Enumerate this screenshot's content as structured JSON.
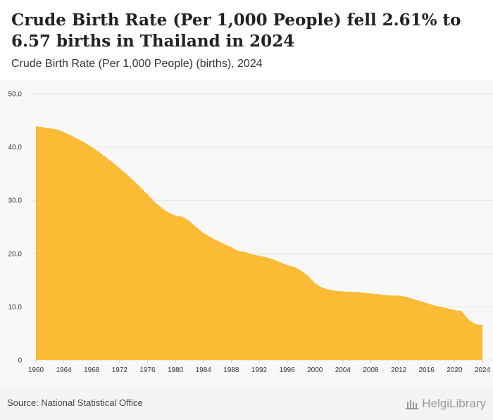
{
  "header": {
    "title": "Crude Birth Rate (Per 1,000 People) fell 2.61% to 6.57 births in Thailand in 2024",
    "subtitle": "Crude Birth Rate (Per 1,000 People) (births), 2024"
  },
  "footer": {
    "source": "Source: National Statistical Office",
    "logo_text": "HelgiLibrary"
  },
  "colors": {
    "area_fill": "#fbbb35",
    "plot_background": "#f8f8f8",
    "gridline": "#e4e4e4"
  },
  "chart_data": {
    "type": "area",
    "title": "Crude Birth Rate (Per 1,000 People) fell 2.61% to 6.57 births in Thailand in 2024",
    "subtitle": "Crude Birth Rate (Per 1,000 People) (births), 2024",
    "xlabel": "",
    "ylabel": "",
    "xlim": [
      1960,
      2024
    ],
    "ylim": [
      0,
      50
    ],
    "grid": true,
    "y_ticks": [
      {
        "value": 0,
        "label": "0"
      },
      {
        "value": 10,
        "label": "10.0"
      },
      {
        "value": 20,
        "label": "20.0"
      },
      {
        "value": 30,
        "label": "30.0"
      },
      {
        "value": 40,
        "label": "40.0"
      },
      {
        "value": 50,
        "label": "50.0"
      }
    ],
    "x_ticks": [
      "1960",
      "1964",
      "1968",
      "1972",
      "1976",
      "1980",
      "1984",
      "1988",
      "1992",
      "1996",
      "2000",
      "2004",
      "2008",
      "2012",
      "2016",
      "2020",
      "2024"
    ],
    "x": [
      1960,
      1961,
      1962,
      1963,
      1964,
      1965,
      1966,
      1967,
      1968,
      1969,
      1970,
      1971,
      1972,
      1973,
      1974,
      1975,
      1976,
      1977,
      1978,
      1979,
      1980,
      1981,
      1982,
      1983,
      1984,
      1985,
      1986,
      1987,
      1988,
      1989,
      1990,
      1991,
      1992,
      1993,
      1994,
      1995,
      1996,
      1997,
      1998,
      1999,
      2000,
      2001,
      2002,
      2003,
      2004,
      2005,
      2006,
      2007,
      2008,
      2009,
      2010,
      2011,
      2012,
      2013,
      2014,
      2015,
      2016,
      2017,
      2018,
      2019,
      2020,
      2021,
      2022,
      2023,
      2024
    ],
    "series": [
      {
        "values": [
          43.9,
          43.7,
          43.5,
          43.3,
          42.8,
          42.2,
          41.5,
          40.8,
          40.0,
          39.1,
          38.1,
          37.1,
          36.0,
          34.9,
          33.7,
          32.4,
          31.1,
          29.7,
          28.6,
          27.7,
          27.1,
          26.9,
          26.1,
          24.9,
          23.9,
          23.1,
          22.4,
          21.8,
          21.2,
          20.5,
          20.3,
          19.8,
          19.6,
          19.3,
          18.9,
          18.4,
          17.8,
          17.5,
          16.8,
          15.8,
          14.4,
          13.6,
          13.2,
          13.0,
          12.9,
          12.8,
          12.8,
          12.6,
          12.5,
          12.4,
          12.2,
          12.1,
          12.1,
          11.9,
          11.5,
          11.1,
          10.7,
          10.3,
          10.0,
          9.7,
          9.4,
          9.2,
          7.6,
          6.74,
          6.57
        ]
      }
    ]
  }
}
